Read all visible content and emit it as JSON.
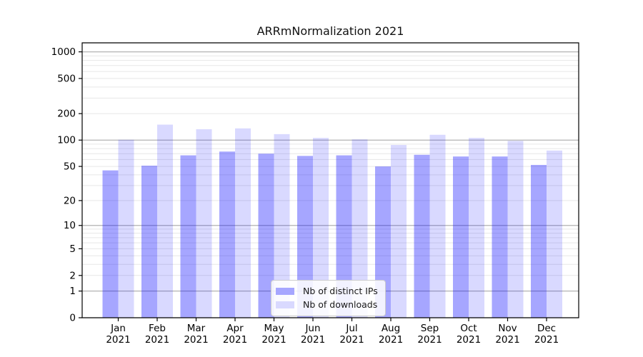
{
  "chart_data": {
    "type": "bar",
    "title": "ARRmNormalization 2021",
    "categories": [
      "Jan 2021",
      "Feb 2021",
      "Mar 2021",
      "Apr 2021",
      "May 2021",
      "Jun 2021",
      "Jul 2021",
      "Aug 2021",
      "Sep 2021",
      "Oct 2021",
      "Nov 2021",
      "Dec 2021"
    ],
    "series": [
      {
        "name": "Nb of distinct IPs",
        "fill": "rgba(0,0,255,0.35)",
        "swatch": "#a6a6ff",
        "values": [
          45,
          51,
          67,
          74,
          70,
          66,
          67,
          50,
          68,
          65,
          65,
          52
        ]
      },
      {
        "name": "Nb of downloads",
        "fill": "rgba(0,0,255,0.15)",
        "swatch": "#d9d9ff",
        "values": [
          101,
          150,
          133,
          136,
          117,
          106,
          102,
          88,
          115,
          106,
          98,
          76
        ]
      }
    ],
    "yscale": "symlog_log10(1+v)",
    "yticks": [
      0,
      1,
      2,
      5,
      10,
      20,
      50,
      100,
      200,
      500,
      1000
    ],
    "ylim": [
      0,
      1260
    ],
    "xlabel": "",
    "ylabel": "",
    "grid": "horizontal-major-and-minor",
    "legend_position": "lower-center",
    "colors": {
      "major_grid": "#b3b3b3",
      "minor_grid": "#e7e7e7",
      "spine": "#000000",
      "background": "#ffffff"
    }
  }
}
